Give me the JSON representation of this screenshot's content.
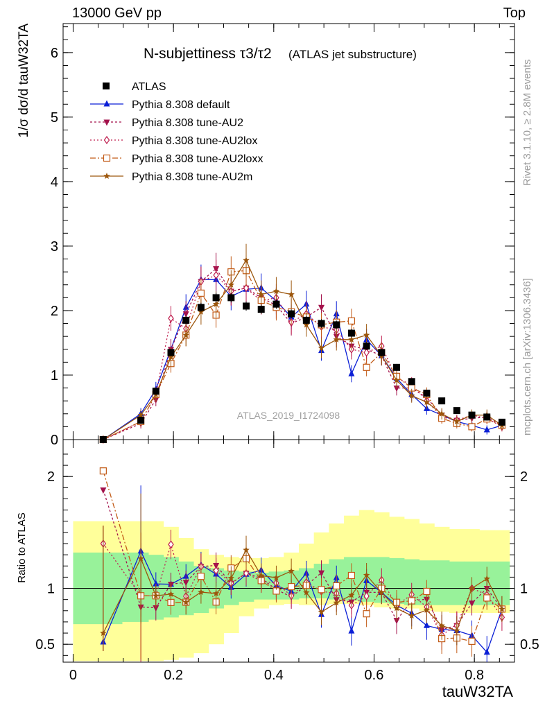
{
  "header": {
    "energy_label": "13000 GeV pp",
    "process_label": "Top"
  },
  "side_labels": {
    "rivet": "Rivet 3.1.10, ≥ 2.8M events",
    "mcplots": "mcplots.cern.ch [arXiv:1306.3436]"
  },
  "chart_data": {
    "type": "scatter",
    "title": "N-subjettiness τ3/τ2",
    "title_suffix": "(ATLAS jet substructure)",
    "analysis_id": "ATLAS_2019_I1724098",
    "xlabel": "tauW32TA",
    "ylabel": "1/σ dσ/d tauW32TA",
    "ratio_ylabel": "Ratio to ATLAS",
    "xlim": [
      -0.02,
      0.88
    ],
    "ylim": [
      0,
      6.45
    ],
    "ratio_ylim": [
      0.34,
      2.33
    ],
    "x_ticks": [
      0,
      0.2,
      0.4,
      0.6,
      0.8
    ],
    "y_ticks": [
      0,
      1,
      2,
      3,
      4,
      5,
      6
    ],
    "ratio_ticks": [
      0.5,
      1,
      2
    ],
    "legend_position": "top-left",
    "x": [
      0.06,
      0.135,
      0.165,
      0.195,
      0.225,
      0.255,
      0.285,
      0.315,
      0.345,
      0.375,
      0.405,
      0.435,
      0.465,
      0.495,
      0.525,
      0.555,
      0.585,
      0.615,
      0.645,
      0.675,
      0.705,
      0.735,
      0.765,
      0.795,
      0.825,
      0.855
    ],
    "data": {
      "name": "ATLAS",
      "values": [
        0.0,
        0.3,
        0.75,
        1.35,
        1.85,
        2.05,
        2.2,
        2.2,
        2.07,
        2.02,
        2.1,
        1.95,
        1.85,
        1.8,
        1.78,
        1.65,
        1.45,
        1.35,
        1.12,
        0.9,
        0.72,
        0.6,
        0.45,
        0.38,
        0.35,
        0.27
      ]
    },
    "series": [
      {
        "name": "Pythia 8.308 default",
        "color": "#0b1fd6",
        "marker": "triangle-up",
        "dash": "",
        "values": [
          0.0,
          0.4,
          0.78,
          1.4,
          2.05,
          2.48,
          2.48,
          2.22,
          2.33,
          2.35,
          2.15,
          1.9,
          2.1,
          1.38,
          1.95,
          1.02,
          1.55,
          1.3,
          0.95,
          0.7,
          0.48,
          0.38,
          0.28,
          0.22,
          0.15,
          0.22
        ]
      },
      {
        "name": "Pythia 8.308 tune-AU2",
        "color": "#a3114b",
        "marker": "triangle-down",
        "dash": "3,3",
        "values": [
          0.0,
          0.25,
          0.62,
          1.4,
          1.95,
          2.45,
          2.65,
          2.3,
          2.35,
          2.2,
          2.08,
          1.8,
          1.9,
          2.05,
          1.6,
          1.45,
          1.4,
          1.3,
          0.8,
          0.8,
          0.65,
          0.38,
          0.3,
          0.33,
          0.35,
          0.22
        ]
      },
      {
        "name": "Pythia 8.308 tune-AU2lox",
        "color": "#bf1c4d",
        "marker": "diamond-open",
        "dash": "2,3",
        "values": [
          0.0,
          0.28,
          0.7,
          1.88,
          1.72,
          2.45,
          2.55,
          2.3,
          2.35,
          2.15,
          2.2,
          1.82,
          1.95,
          1.75,
          1.7,
          1.4,
          1.35,
          1.45,
          0.95,
          0.85,
          0.6,
          0.35,
          0.3,
          0.38,
          0.33,
          0.2
        ]
      },
      {
        "name": "Pythia 8.308 tune-AU2loxx",
        "color": "#c25a16",
        "marker": "square-open",
        "dash": "8,3,2,3",
        "values": [
          0.0,
          0.28,
          0.7,
          1.18,
          1.62,
          2.27,
          1.93,
          2.6,
          2.62,
          2.16,
          2.05,
          1.98,
          1.9,
          1.78,
          1.82,
          1.84,
          1.12,
          1.35,
          0.98,
          0.8,
          0.7,
          0.33,
          0.25,
          0.2,
          0.32,
          0.22
        ]
      },
      {
        "name": "Pythia 8.308 tune-AU2m",
        "color": "#9c560c",
        "marker": "star",
        "dash": "",
        "values": [
          0.0,
          0.38,
          0.7,
          1.28,
          1.62,
          1.98,
          2.1,
          2.4,
          2.78,
          2.25,
          2.3,
          2.25,
          1.78,
          1.42,
          1.55,
          1.55,
          1.62,
          1.3,
          0.92,
          0.68,
          0.58,
          0.4,
          0.28,
          0.38,
          0.38,
          0.22
        ]
      }
    ],
    "band_yellow": {
      "color": "#ffff9a",
      "lo": [
        0.35,
        0.35,
        0.35,
        0.36,
        0.38,
        0.42,
        0.5,
        0.6,
        0.75,
        0.82,
        0.85,
        0.86,
        0.85,
        0.85,
        0.86,
        0.86,
        0.85,
        0.83,
        0.82,
        0.82,
        0.8,
        0.79,
        0.78,
        0.78,
        0.78,
        0.78
      ],
      "hi": [
        1.6,
        1.6,
        1.6,
        1.55,
        1.45,
        1.35,
        1.3,
        1.28,
        1.27,
        1.27,
        1.28,
        1.32,
        1.4,
        1.5,
        1.58,
        1.65,
        1.7,
        1.68,
        1.64,
        1.62,
        1.58,
        1.55,
        1.53,
        1.53,
        1.52,
        1.52
      ]
    },
    "band_green": {
      "color": "#98f29a",
      "lo": [
        0.68,
        0.7,
        0.72,
        0.74,
        0.76,
        0.78,
        0.82,
        0.85,
        0.88,
        0.9,
        0.9,
        0.9,
        0.91,
        0.91,
        0.9,
        0.89,
        0.88,
        0.87,
        0.86,
        0.85,
        0.85,
        0.85,
        0.85,
        0.85,
        0.85,
        0.85
      ],
      "hi": [
        1.32,
        1.32,
        1.3,
        1.28,
        1.24,
        1.2,
        1.18,
        1.16,
        1.15,
        1.14,
        1.15,
        1.16,
        1.18,
        1.22,
        1.26,
        1.28,
        1.28,
        1.28,
        1.27,
        1.26,
        1.25,
        1.25,
        1.24,
        1.24,
        1.24,
        1.24
      ]
    }
  }
}
